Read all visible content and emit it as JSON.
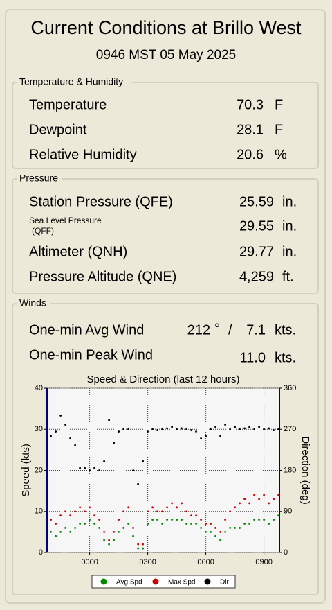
{
  "title": "Current Conditions at Brillo West",
  "timestamp": "0946 MST 05 May 2025",
  "sections": [
    {
      "title": "Temperature & Humidity",
      "rows": [
        {
          "label": "Temperature",
          "value": "70.3",
          "unit": "F"
        },
        {
          "label": "Dewpoint",
          "value": "28.1",
          "unit": "F"
        },
        {
          "label": "Relative Humidity",
          "value": "20.6",
          "unit": "%"
        }
      ]
    },
    {
      "title": "Pressure",
      "rows": [
        {
          "label": "Station Pressure (QFE)",
          "value": "25.59",
          "unit": "in."
        },
        {
          "label": [
            "Sea Level Pressure",
            "(QFF)"
          ],
          "value": "29.55",
          "unit": "in."
        },
        {
          "label": "Altimeter (QNH)",
          "value": "29.77",
          "unit": "in."
        },
        {
          "label": "Pressure Altitude (QNE)",
          "value": "4,259",
          "unit": "ft."
        }
      ]
    }
  ],
  "winds": {
    "title": "Winds",
    "avg": {
      "label": "One-min Avg Wind",
      "direction": "212",
      "direction_unit": "°",
      "separator": "/",
      "speed": "7.1",
      "unit": "kts."
    },
    "peak": {
      "label": "One-min Peak Wind",
      "speed": "11.0",
      "unit": "kts."
    }
  },
  "chart_data": {
    "type": "scatter",
    "title": "Speed & Direction (last 12 hours)",
    "ylabel": "Speed (kts)",
    "y2label": "Direction (deg)",
    "xlim": [
      -2.2,
      9.8
    ],
    "xticks": [
      {
        "value": 0,
        "label": "0000"
      },
      {
        "value": 3,
        "label": "0300"
      },
      {
        "value": 6,
        "label": "0600"
      },
      {
        "value": 9,
        "label": "0900"
      }
    ],
    "ylim": [
      0,
      40
    ],
    "yticks": [
      0,
      10,
      20,
      30,
      40
    ],
    "y2lim": [
      0,
      360
    ],
    "y2ticks": [
      0,
      90,
      180,
      270,
      360
    ],
    "grid": true,
    "x": [
      -2,
      -1.75,
      -1.5,
      -1.25,
      -1,
      -0.75,
      -0.5,
      -0.25,
      0,
      0.25,
      0.5,
      0.75,
      1,
      1.25,
      1.5,
      1.75,
      2,
      2.25,
      2.5,
      2.75,
      3,
      3.25,
      3.5,
      3.75,
      4,
      4.25,
      4.5,
      4.75,
      5,
      5.25,
      5.5,
      5.75,
      6,
      6.25,
      6.5,
      6.75,
      7,
      7.25,
      7.5,
      7.75,
      8,
      8.25,
      8.5,
      8.75,
      9,
      9.25,
      9.5,
      9.75
    ],
    "series": [
      {
        "name": "Avg Spd",
        "color": "#008800",
        "values": [
          5,
          4,
          5,
          6,
          5,
          6,
          7,
          7,
          8,
          7,
          6,
          3,
          2,
          3,
          5,
          6,
          7,
          4,
          1,
          1,
          7,
          8,
          8,
          7,
          8,
          8,
          8,
          8,
          7,
          7,
          7,
          6,
          5,
          5,
          4,
          3,
          5,
          6,
          6,
          6,
          7,
          7,
          8,
          8,
          8,
          7,
          8,
          9
        ]
      },
      {
        "name": "Max Spd",
        "color": "#cc0000",
        "values": [
          8,
          7,
          9,
          10,
          9,
          10,
          11,
          10,
          11,
          9,
          8,
          5,
          3,
          5,
          8,
          10,
          11,
          6,
          2,
          2,
          10,
          11,
          10,
          10,
          11,
          12,
          11,
          12,
          10,
          9,
          9,
          8,
          7,
          7,
          6,
          5,
          8,
          10,
          11,
          12,
          13,
          12,
          14,
          13,
          14,
          12,
          13,
          14
        ]
      },
      {
        "name": "Dir",
        "color": "#000000",
        "axis": "y2",
        "values": [
          255,
          265,
          300,
          280,
          250,
          235,
          185,
          185,
          180,
          185,
          180,
          200,
          290,
          240,
          265,
          270,
          270,
          180,
          150,
          200,
          265,
          270,
          268,
          270,
          272,
          275,
          270,
          272,
          270,
          268,
          265,
          250,
          255,
          270,
          275,
          255,
          280,
          270,
          275,
          270,
          272,
          275,
          270,
          275,
          270,
          272,
          268,
          270
        ]
      }
    ]
  }
}
